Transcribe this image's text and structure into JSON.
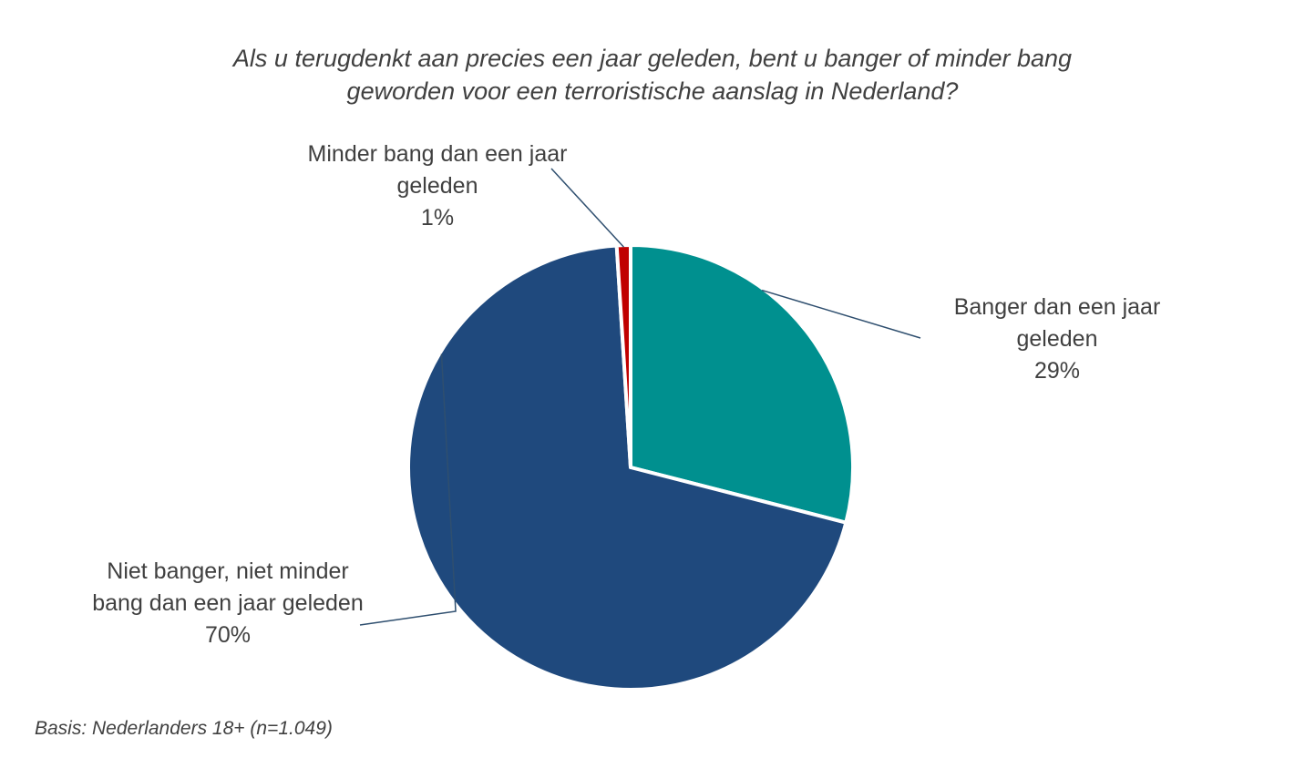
{
  "chart_data": {
    "type": "pie",
    "title_lines": [
      "Als u terugdenkt aan precies een jaar geleden, bent u banger of minder bang",
      "geworden voor een terroristische aanslag in Nederland?"
    ],
    "slices": [
      {
        "label_lines": [
          "Banger dan een jaar",
          "geleden"
        ],
        "value": 29,
        "value_label": "29%",
        "color": "#00908F"
      },
      {
        "label_lines": [
          "Niet banger, niet minder",
          "bang dan een jaar geleden"
        ],
        "value": 70,
        "value_label": "70%",
        "color": "#1F497D"
      },
      {
        "label_lines": [
          "Minder bang dan een jaar",
          "geleden"
        ],
        "value": 1,
        "value_label": "1%",
        "color": "#C00000"
      }
    ],
    "legend": "none",
    "data_labels": "outside with leader lines"
  },
  "footnote": "Basis: Nederlanders 18+ (n=1.049)"
}
